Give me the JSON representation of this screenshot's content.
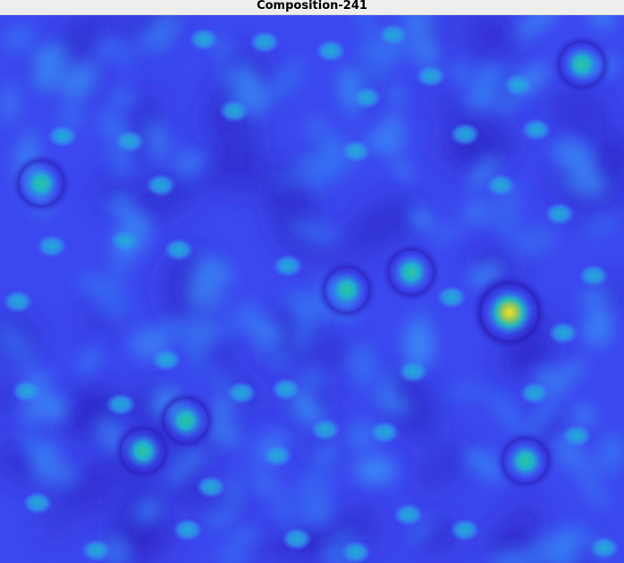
{
  "window": {
    "title": "Composition-241"
  },
  "image": {
    "colormap": "parula",
    "colors": {
      "low": "#3425d6",
      "mid_low": "#3b44f0",
      "mid": "#3a7df3",
      "mid_high": "#20b5cc",
      "high": "#27c397",
      "peak_yellow": "#f2d82a"
    }
  }
}
